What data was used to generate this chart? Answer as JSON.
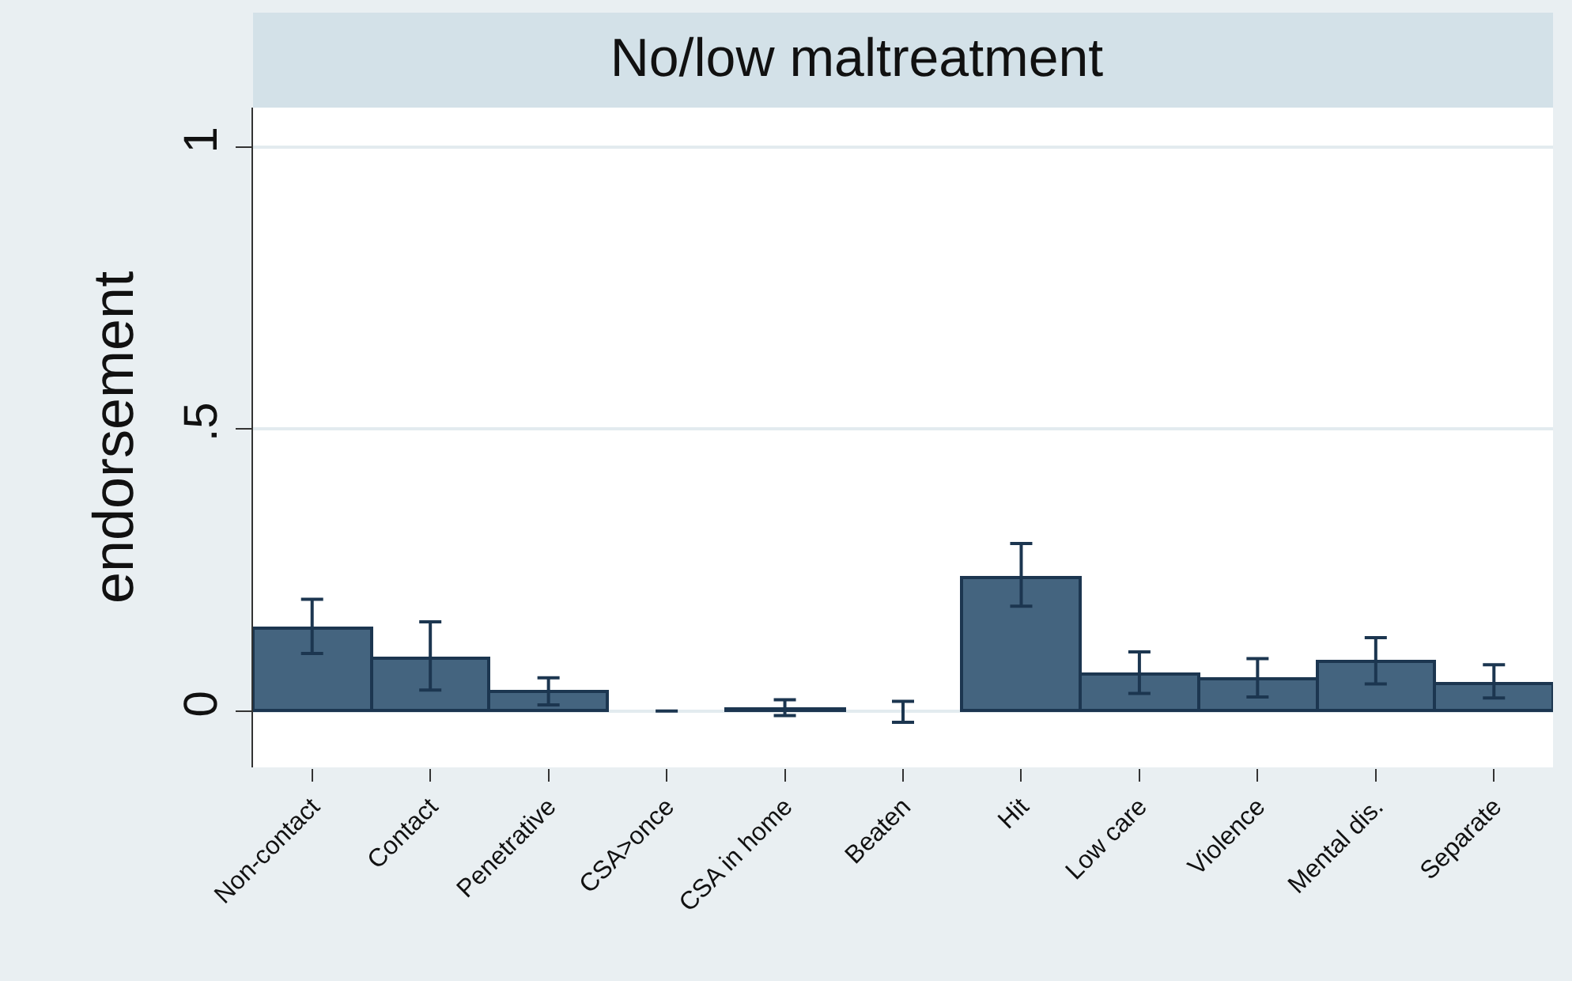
{
  "chart_data": {
    "type": "bar",
    "title": "No/low maltreatment",
    "ylabel": "endorsement",
    "categories": [
      "Non-contact",
      "Contact",
      "Penetrative",
      "CSA>once",
      "CSA in home",
      "Beaten",
      "Hit",
      "Low care",
      "Violence",
      "Mental dis.",
      "Separate"
    ],
    "values": [
      0.147,
      0.093,
      0.034,
      0,
      0.003,
      0,
      0.237,
      0.065,
      0.056,
      0.088,
      0.048
    ],
    "errors": [
      [
        0.102,
        0.198
      ],
      [
        0.037,
        0.158
      ],
      [
        0.011,
        0.059
      ],
      [
        0,
        0
      ],
      [
        -0.008,
        0.02
      ],
      [
        -0.02,
        0.017
      ],
      [
        0.186,
        0.297
      ],
      [
        0.031,
        0.105
      ],
      [
        0.025,
        0.093
      ],
      [
        0.048,
        0.13
      ],
      [
        0.023,
        0.082
      ]
    ],
    "color": "#44647f",
    "ylim": [
      -0.1,
      1.07
    ],
    "yticks": [
      {
        "value": 0,
        "label": "0"
      },
      {
        "value": 0.5,
        "label": ".5"
      },
      {
        "value": 1,
        "label": "1"
      }
    ],
    "grid": "y"
  }
}
